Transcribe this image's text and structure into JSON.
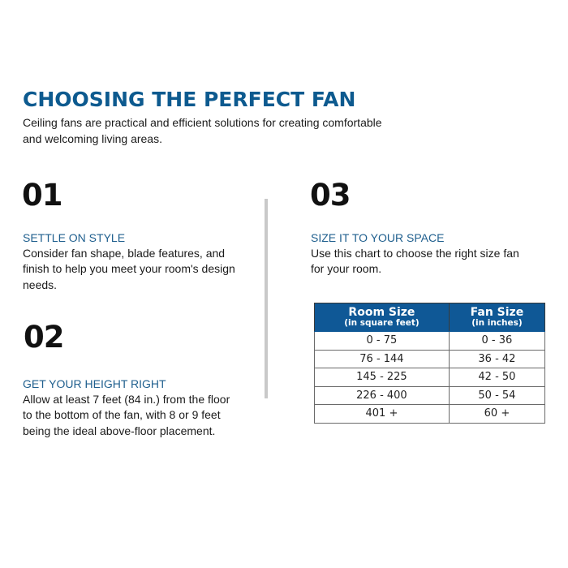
{
  "title": "CHOOSING THE PERFECT FAN",
  "intro": "Ceiling fans are practical and efficient solutions for creating comfortable and welcoming living areas.",
  "colors": {
    "accent": "#0d5a8f",
    "table_header": "#0f5896",
    "divider": "#c9c9c9"
  },
  "steps": [
    {
      "number": "01",
      "heading": "SETTLE ON STYLE",
      "text": "Consider fan shape, blade features, and finish to help you meet your room's design needs."
    },
    {
      "number": "02",
      "heading": "GET YOUR HEIGHT RIGHT",
      "text": "Allow at least 7 feet (84 in.) from the floor to the bottom of the fan, with 8 or 9 feet being the ideal above-floor placement."
    },
    {
      "number": "03",
      "heading": "SIZE IT TO YOUR SPACE",
      "text": "Use this chart to choose the right size fan for your room."
    }
  ],
  "table": {
    "columns": [
      {
        "label": "Room Size",
        "sub": "(in square feet)"
      },
      {
        "label": "Fan Size",
        "sub": "(in inches)"
      }
    ],
    "rows": [
      [
        "0 - 75",
        "0 - 36"
      ],
      [
        "76 - 144",
        "36 - 42"
      ],
      [
        "145 - 225",
        "42 - 50"
      ],
      [
        "226 - 400",
        "50 - 54"
      ],
      [
        "401 +",
        "60 +"
      ]
    ]
  }
}
